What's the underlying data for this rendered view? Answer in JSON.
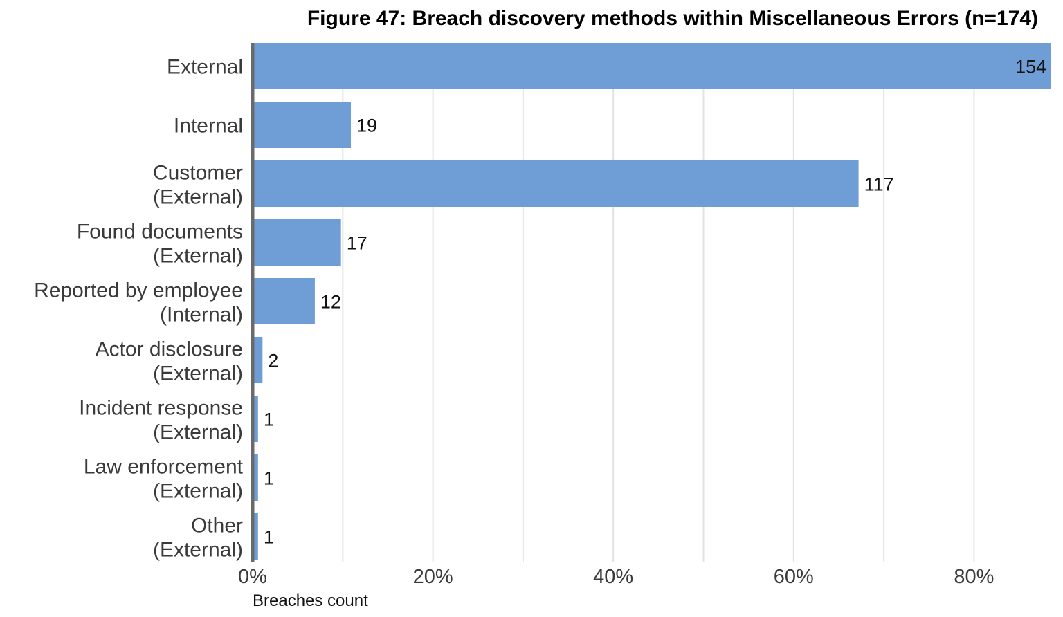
{
  "chart_data": {
    "type": "bar",
    "orientation": "horizontal",
    "title": "Figure 47: Breach discovery methods within Miscellaneous Errors (n=174)",
    "xlabel": "Breaches count",
    "ylabel": "",
    "n": 174,
    "categories": [
      [
        "External"
      ],
      [
        "Internal"
      ],
      [
        "Customer",
        "(External)"
      ],
      [
        "Found documents",
        "(External)"
      ],
      [
        "Reported by employee",
        "(Internal)"
      ],
      [
        "Actor disclosure",
        "(External)"
      ],
      [
        "Incident response",
        "(External)"
      ],
      [
        "Law enforcement",
        "(External)"
      ],
      [
        "Other",
        "(External)"
      ]
    ],
    "values": [
      154,
      19,
      117,
      17,
      12,
      2,
      1,
      1,
      1
    ],
    "percent_values": [
      88.5,
      10.9,
      67.2,
      9.8,
      6.9,
      1.1,
      0.6,
      0.6,
      0.6
    ],
    "x_ticks": [
      "0%",
      "20%",
      "40%",
      "60%",
      "80%"
    ],
    "xlim_percent": [
      0,
      88.5
    ],
    "grid": true,
    "bar_color": "#6f9dd6",
    "axis_line_color": "#6a6a6a",
    "grid_color": "#e3e3e3"
  }
}
